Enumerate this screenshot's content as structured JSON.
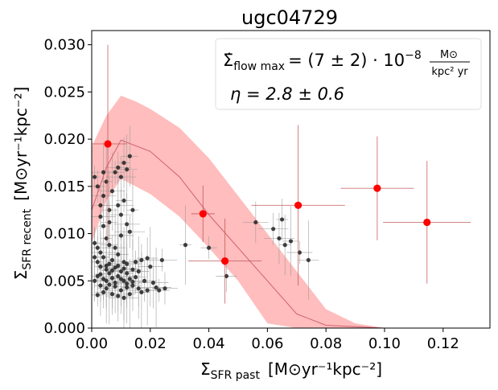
{
  "chart_data": {
    "type": "scatter",
    "title": "ugc04729",
    "xlabel": {
      "symbol": "Σ",
      "sub": "SFR past",
      "units": "[M⊙yr⁻¹kpc⁻²]"
    },
    "ylabel": {
      "symbol": "Σ",
      "sub": "SFR recent",
      "units": "[M⊙yr⁻¹kpc⁻²]"
    },
    "xlim": [
      0,
      0.136
    ],
    "ylim": [
      0,
      0.0315
    ],
    "xticks": [
      0,
      0.02,
      0.04,
      0.06,
      0.08,
      0.1,
      0.12
    ],
    "xtick_labels": [
      "0.00",
      "0.02",
      "0.04",
      "0.06",
      "0.08",
      "0.10",
      "0.12"
    ],
    "yticks": [
      0,
      0.005,
      0.01,
      0.015,
      0.02,
      0.025,
      0.03
    ],
    "ytick_labels": [
      "0.000",
      "0.005",
      "0.010",
      "0.015",
      "0.020",
      "0.025",
      "0.030"
    ],
    "annotation": {
      "line1_prefix": "Σ̇",
      "line1_sub": "flow max",
      "line1_main": "= (7 ± 2) · 10",
      "line1_exp": "−8",
      "line1_num": "M⊙",
      "line1_den": "kpc² yr",
      "line2": "η = 2.8 ± 0.6",
      "placement": "top-right"
    },
    "model_band": {
      "name": "model range",
      "color": "#ff9999",
      "x": [
        0.0,
        0.005,
        0.01,
        0.015,
        0.02,
        0.03,
        0.04,
        0.05,
        0.06,
        0.07,
        0.08,
        0.09,
        0.1,
        0.11,
        0.12,
        0.13
      ],
      "upper": [
        0.0192,
        0.0225,
        0.0246,
        0.024,
        0.0232,
        0.0212,
        0.018,
        0.014,
        0.01,
        0.006,
        0.002,
        0.0005,
        0.0,
        0.0,
        0.0,
        0.0
      ],
      "lower": [
        0.009,
        0.0135,
        0.0158,
        0.015,
        0.0142,
        0.0118,
        0.0085,
        0.005,
        0.0005,
        0.0,
        0.0,
        0.0,
        0.0,
        0.0,
        0.0,
        0.0
      ]
    },
    "model_line": {
      "name": "model median",
      "color": "#d06070",
      "x": [
        0.0,
        0.005,
        0.01,
        0.02,
        0.03,
        0.04,
        0.05,
        0.06,
        0.07,
        0.08,
        0.1,
        0.12,
        0.13
      ],
      "y": [
        0.0125,
        0.017,
        0.0199,
        0.0187,
        0.016,
        0.012,
        0.0085,
        0.005,
        0.0015,
        0.0003,
        0.0,
        0.0,
        0.0
      ]
    },
    "binned_points": {
      "name": "binned",
      "color": "#ff0000",
      "points": [
        {
          "x": 0.0055,
          "y": 0.0195,
          "xerr": 0.0065,
          "yerr": 0.0105
        },
        {
          "x": 0.038,
          "y": 0.0121,
          "xerr": 0.004,
          "yerr": 0.003
        },
        {
          "x": 0.0455,
          "y": 0.0071,
          "xerr": 0.0125,
          "yerr": 0.0045
        },
        {
          "x": 0.0705,
          "y": 0.013,
          "xerr": 0.016,
          "yerr": 0.0085
        },
        {
          "x": 0.0975,
          "y": 0.0148,
          "xerr": 0.0125,
          "yerr": 0.0055
        },
        {
          "x": 0.1145,
          "y": 0.0112,
          "xerr": 0.015,
          "yerr": 0.0065
        }
      ]
    },
    "pixel_points": {
      "name": "individual",
      "color": "#222222",
      "points": [
        [
          0.001,
          0.016
        ],
        [
          0.002,
          0.015
        ],
        [
          0.003,
          0.013
        ],
        [
          0.004,
          0.014
        ],
        [
          0.004,
          0.0165
        ],
        [
          0.005,
          0.0155
        ],
        [
          0.006,
          0.0125
        ],
        [
          0.008,
          0.0165
        ],
        [
          0.009,
          0.017
        ],
        [
          0.01,
          0.016
        ],
        [
          0.011,
          0.0175
        ],
        [
          0.013,
          0.0182
        ],
        [
          0.012,
          0.0168
        ],
        [
          0.007,
          0.0145
        ],
        [
          0.003,
          0.0118
        ],
        [
          0.004,
          0.0108
        ],
        [
          0.006,
          0.0112
        ],
        [
          0.01,
          0.012
        ],
        [
          0.012,
          0.011
        ],
        [
          0.009,
          0.013
        ],
        [
          0.014,
          0.0125
        ],
        [
          0.011,
          0.0135
        ],
        [
          0.001,
          0.009
        ],
        [
          0.002,
          0.0085
        ],
        [
          0.003,
          0.008
        ],
        [
          0.005,
          0.0095
        ],
        [
          0.006,
          0.0088
        ],
        [
          0.008,
          0.0085
        ],
        [
          0.01,
          0.0098
        ],
        [
          0.013,
          0.0102
        ],
        [
          0.004,
          0.0075
        ],
        [
          0.007,
          0.0072
        ],
        [
          0.009,
          0.0078
        ],
        [
          0.011,
          0.007
        ],
        [
          0.012,
          0.0068
        ],
        [
          0.015,
          0.007
        ],
        [
          0.017,
          0.0072
        ],
        [
          0.019,
          0.0074
        ],
        [
          0.002,
          0.007
        ],
        [
          0.001,
          0.0075
        ],
        [
          0.003,
          0.0065
        ],
        [
          0.005,
          0.0062
        ],
        [
          0.006,
          0.0068
        ],
        [
          0.008,
          0.0064
        ],
        [
          0.01,
          0.006
        ],
        [
          0.012,
          0.0058
        ],
        [
          0.014,
          0.0062
        ],
        [
          0.016,
          0.006
        ],
        [
          0.02,
          0.0065
        ],
        [
          0.024,
          0.0072
        ],
        [
          0.002,
          0.0055
        ],
        [
          0.004,
          0.0052
        ],
        [
          0.005,
          0.005
        ],
        [
          0.007,
          0.0053
        ],
        [
          0.009,
          0.0055
        ],
        [
          0.011,
          0.005
        ],
        [
          0.013,
          0.0052
        ],
        [
          0.015,
          0.0054
        ],
        [
          0.018,
          0.005
        ],
        [
          0.021,
          0.0048
        ],
        [
          0.003,
          0.0045
        ],
        [
          0.005,
          0.0042
        ],
        [
          0.006,
          0.0046
        ],
        [
          0.008,
          0.0044
        ],
        [
          0.01,
          0.004
        ],
        [
          0.012,
          0.0043
        ],
        [
          0.014,
          0.0045
        ],
        [
          0.016,
          0.0042
        ],
        [
          0.019,
          0.004
        ],
        [
          0.022,
          0.0043
        ],
        [
          0.002,
          0.0035
        ],
        [
          0.004,
          0.0038
        ],
        [
          0.007,
          0.0036
        ],
        [
          0.009,
          0.0034
        ],
        [
          0.011,
          0.0032
        ],
        [
          0.013,
          0.0036
        ],
        [
          0.017,
          0.0038
        ],
        [
          0.023,
          0.004
        ],
        [
          0.025,
          0.0042
        ],
        [
          0.001,
          0.005
        ],
        [
          0.006,
          0.0058
        ],
        [
          0.008,
          0.0048
        ],
        [
          0.01,
          0.0052
        ],
        [
          0.012,
          0.0047
        ],
        [
          0.014,
          0.0049
        ],
        [
          0.003,
          0.0057
        ],
        [
          0.005,
          0.0066
        ],
        [
          0.007,
          0.0061
        ],
        [
          0.009,
          0.0066
        ],
        [
          0.011,
          0.0063
        ],
        [
          0.032,
          0.0088
        ],
        [
          0.04,
          0.0085
        ],
        [
          0.046,
          0.0055
        ],
        [
          0.056,
          0.0112
        ],
        [
          0.064,
          0.0095
        ],
        [
          0.066,
          0.0088
        ],
        [
          0.068,
          0.0092
        ],
        [
          0.074,
          0.0072
        ],
        [
          0.071,
          0.008
        ],
        [
          0.062,
          0.0105
        ],
        [
          0.065,
          0.0115
        ]
      ]
    }
  }
}
